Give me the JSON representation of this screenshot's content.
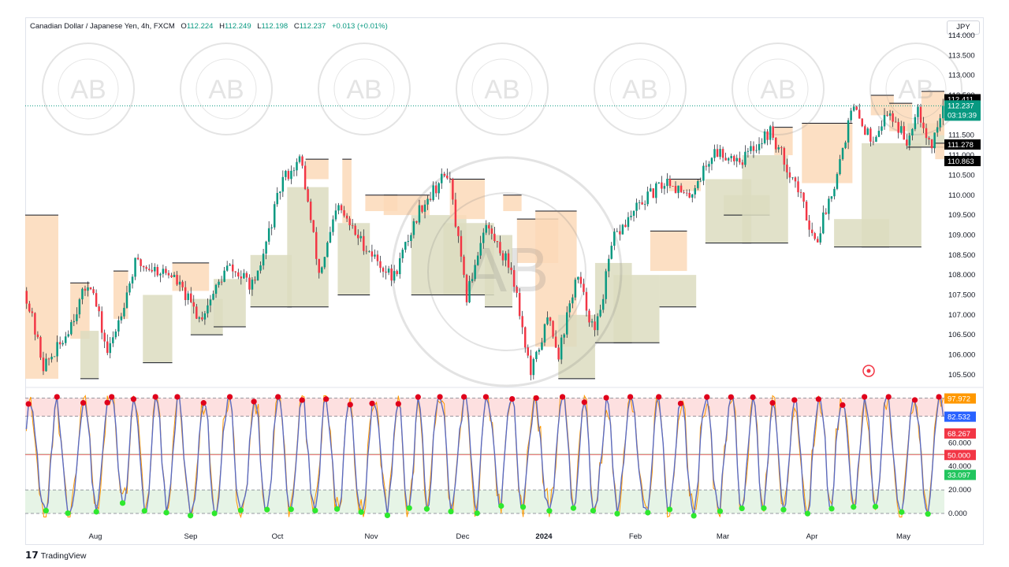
{
  "header": {
    "symbol": "Canadian Dollar / Japanese Yen, 4h, FXCM",
    "o_label": "O",
    "o": "112.224",
    "h_label": "H",
    "h": "112.249",
    "l_label": "L",
    "l": "112.198",
    "c_label": "C",
    "c": "112.237",
    "change": "+0.013 (+0.01%)",
    "currency": "JPY"
  },
  "brand": {
    "logo": "𝟭𝟳",
    "name": "TradingView"
  },
  "watermark": {
    "lines": [
      "AB",
      "ARABIAN BUSINESS ACADEMY",
      "أكاديمية عبد الرحمن الأعمال"
    ]
  },
  "colors": {
    "up": "#089981",
    "down": "#f23645",
    "wick": "#131722",
    "box_supply": "#fcd9b8",
    "box_demand": "#dcdcbf",
    "rsi_line": "#5c6bc0",
    "rsi_fast": "#ff9800",
    "dot_high": "#e0001b",
    "dot_low": "#2ee82e",
    "overbought_zone": "#fde0e0",
    "oversold_zone": "#e6f4e6"
  },
  "chart_data": [
    {
      "type": "candlestick",
      "title": "Canadian Dollar / Japanese Yen, 4h, FXCM",
      "ylim": [
        105.3,
        114.0
      ],
      "y_ticks": [
        "114.000",
        "113.500",
        "113.000",
        "112.500",
        "112.000",
        "111.500",
        "111.000",
        "110.500",
        "110.000",
        "109.500",
        "109.000",
        "108.500",
        "108.000",
        "107.500",
        "107.000",
        "106.500",
        "106.000",
        "105.500"
      ],
      "x_ticks": [
        "Aug",
        "Sep",
        "Oct",
        "Nov",
        "Dec",
        "2024",
        "Feb",
        "Mar",
        "Apr",
        "May"
      ],
      "path_waypoints": [
        [
          0,
          107.6
        ],
        [
          0.02,
          105.7
        ],
        [
          0.04,
          106.3
        ],
        [
          0.07,
          107.9
        ],
        [
          0.09,
          106.0
        ],
        [
          0.12,
          108.3
        ],
        [
          0.16,
          108.0
        ],
        [
          0.19,
          106.9
        ],
        [
          0.22,
          108.2
        ],
        [
          0.25,
          107.7
        ],
        [
          0.28,
          110.4
        ],
        [
          0.3,
          110.9
        ],
        [
          0.32,
          108.0
        ],
        [
          0.34,
          109.7
        ],
        [
          0.36,
          109.0
        ],
        [
          0.4,
          107.9
        ],
        [
          0.43,
          109.7
        ],
        [
          0.46,
          110.6
        ],
        [
          0.48,
          107.4
        ],
        [
          0.5,
          109.3
        ],
        [
          0.53,
          108.1
        ],
        [
          0.55,
          105.5
        ],
        [
          0.57,
          107.0
        ],
        [
          0.58,
          106.0
        ],
        [
          0.6,
          108.0
        ],
        [
          0.62,
          106.5
        ],
        [
          0.64,
          108.9
        ],
        [
          0.67,
          109.8
        ],
        [
          0.7,
          110.4
        ],
        [
          0.72,
          109.9
        ],
        [
          0.75,
          111.1
        ],
        [
          0.78,
          110.9
        ],
        [
          0.81,
          111.6
        ],
        [
          0.84,
          110.2
        ],
        [
          0.86,
          108.8
        ],
        [
          0.88,
          110.3
        ],
        [
          0.9,
          112.2
        ],
        [
          0.92,
          111.4
        ],
        [
          0.94,
          112.1
        ],
        [
          0.96,
          111.3
        ],
        [
          0.97,
          112.3
        ],
        [
          0.985,
          111.2
        ],
        [
          1.0,
          112.237
        ]
      ],
      "boxes": [
        {
          "kind": "supply",
          "x": [
            0,
            0.036
          ],
          "y": [
            105.4,
            109.5
          ]
        },
        {
          "kind": "supply",
          "x": [
            0.049,
            0.07
          ],
          "y": [
            106.4,
            107.8
          ]
        },
        {
          "kind": "demand",
          "x": [
            0.06,
            0.08
          ],
          "y": [
            105.4,
            106.6
          ]
        },
        {
          "kind": "supply",
          "x": [
            0.096,
            0.112
          ],
          "y": [
            106.9,
            108.1
          ]
        },
        {
          "kind": "demand",
          "x": [
            0.128,
            0.16
          ],
          "y": [
            105.8,
            107.5
          ]
        },
        {
          "kind": "supply",
          "x": [
            0.16,
            0.2
          ],
          "y": [
            107.6,
            108.3
          ]
        },
        {
          "kind": "demand",
          "x": [
            0.18,
            0.215
          ],
          "y": [
            106.5,
            107.4
          ]
        },
        {
          "kind": "demand",
          "x": [
            0.205,
            0.24
          ],
          "y": [
            106.7,
            107.9
          ]
        },
        {
          "kind": "demand",
          "x": [
            0.245,
            0.29
          ],
          "y": [
            107.2,
            108.5
          ]
        },
        {
          "kind": "demand",
          "x": [
            0.285,
            0.33
          ],
          "y": [
            107.2,
            110.2
          ]
        },
        {
          "kind": "supply",
          "x": [
            0.305,
            0.33
          ],
          "y": [
            110.4,
            110.9
          ]
        },
        {
          "kind": "supply",
          "x": [
            0.345,
            0.355
          ],
          "y": [
            109.3,
            110.9
          ]
        },
        {
          "kind": "demand",
          "x": [
            0.34,
            0.375
          ],
          "y": [
            107.5,
            109.3
          ]
        },
        {
          "kind": "supply",
          "x": [
            0.37,
            0.405
          ],
          "y": [
            109.6,
            110.0
          ]
        },
        {
          "kind": "supply",
          "x": [
            0.39,
            0.44
          ],
          "y": [
            109.5,
            110.0
          ]
        },
        {
          "kind": "demand",
          "x": [
            0.42,
            0.48
          ],
          "y": [
            107.5,
            109.5
          ]
        },
        {
          "kind": "demand",
          "x": [
            0.455,
            0.51
          ],
          "y": [
            107.5,
            109.3
          ]
        },
        {
          "kind": "supply",
          "x": [
            0.462,
            0.5
          ],
          "y": [
            109.4,
            110.4
          ]
        },
        {
          "kind": "demand",
          "x": [
            0.5,
            0.53
          ],
          "y": [
            107.2,
            109.0
          ]
        },
        {
          "kind": "supply",
          "x": [
            0.52,
            0.54
          ],
          "y": [
            109.6,
            110.0
          ]
        },
        {
          "kind": "supply",
          "x": [
            0.535,
            0.58
          ],
          "y": [
            108.3,
            109.4
          ]
        },
        {
          "kind": "supply",
          "x": [
            0.555,
            0.6
          ],
          "y": [
            106.2,
            109.6
          ]
        },
        {
          "kind": "demand",
          "x": [
            0.58,
            0.62
          ],
          "y": [
            105.4,
            107.0
          ]
        },
        {
          "kind": "demand",
          "x": [
            0.62,
            0.66
          ],
          "y": [
            106.3,
            108.3
          ]
        },
        {
          "kind": "demand",
          "x": [
            0.64,
            0.69
          ],
          "y": [
            106.3,
            108.0
          ]
        },
        {
          "kind": "supply",
          "x": [
            0.68,
            0.72
          ],
          "y": [
            108.1,
            109.1
          ]
        },
        {
          "kind": "demand",
          "x": [
            0.69,
            0.73
          ],
          "y": [
            107.2,
            108.0
          ]
        },
        {
          "kind": "supply",
          "x": [
            0.7,
            0.735
          ],
          "y": [
            110.1,
            110.4
          ]
        },
        {
          "kind": "demand",
          "x": [
            0.74,
            0.79
          ],
          "y": [
            108.8,
            110.4
          ]
        },
        {
          "kind": "demand",
          "x": [
            0.76,
            0.81
          ],
          "y": [
            109.5,
            110.0
          ]
        },
        {
          "kind": "demand",
          "x": [
            0.78,
            0.83
          ],
          "y": [
            108.8,
            111.0
          ]
        },
        {
          "kind": "supply",
          "x": [
            0.815,
            0.835
          ],
          "y": [
            111.0,
            111.7
          ]
        },
        {
          "kind": "supply",
          "x": [
            0.845,
            0.9
          ],
          "y": [
            110.3,
            111.8
          ]
        },
        {
          "kind": "demand",
          "x": [
            0.88,
            0.94
          ],
          "y": [
            108.7,
            109.4
          ]
        },
        {
          "kind": "demand",
          "x": [
            0.91,
            0.975
          ],
          "y": [
            108.7,
            111.3
          ]
        },
        {
          "kind": "supply",
          "x": [
            0.92,
            0.945
          ],
          "y": [
            112.0,
            112.5
          ]
        },
        {
          "kind": "supply",
          "x": [
            0.94,
            0.965
          ],
          "y": [
            111.6,
            112.3
          ]
        },
        {
          "kind": "demand",
          "x": [
            0.96,
            1.0
          ],
          "y": [
            111.2,
            111.8
          ]
        },
        {
          "kind": "supply",
          "x": [
            0.975,
            1.0
          ],
          "y": [
            111.5,
            112.6
          ]
        },
        {
          "kind": "supply",
          "x": [
            0.99,
            1.0
          ],
          "y": [
            110.9,
            111.3
          ]
        }
      ],
      "price_labels": [
        {
          "text": "112.411",
          "value": 112.411,
          "style": "black"
        },
        {
          "text": "112.258",
          "value": 112.258,
          "style": "black"
        },
        {
          "text": "112.237",
          "value": 112.237,
          "style": "current",
          "countdown": "03:19:39"
        },
        {
          "text": "111.278",
          "value": 111.278,
          "style": "black"
        },
        {
          "text": "110.863",
          "value": 110.863,
          "style": "black"
        }
      ]
    },
    {
      "type": "line",
      "title": "",
      "ylim": [
        -4,
        103
      ],
      "y_ticks": [
        "60.000",
        "40.000",
        "20.000",
        "0.000"
      ],
      "hlines": [
        97.972,
        82.532,
        50.0,
        20.0,
        0.0
      ],
      "overbought_zone": [
        82.532,
        97.972
      ],
      "oversold_zone": [
        0,
        20
      ],
      "value_labels": [
        {
          "text": "97.972",
          "value": 97.972,
          "color": "#ff9800"
        },
        {
          "text": "82.532",
          "value": 82.532,
          "color": "#2962ff"
        },
        {
          "text": "68.267",
          "value": 68.267,
          "color": "#f23645"
        },
        {
          "text": "50.000",
          "value": 50.0,
          "color": "#f23645"
        },
        {
          "text": "33.097",
          "value": 33.097,
          "color": "#22c55e"
        }
      ]
    }
  ]
}
